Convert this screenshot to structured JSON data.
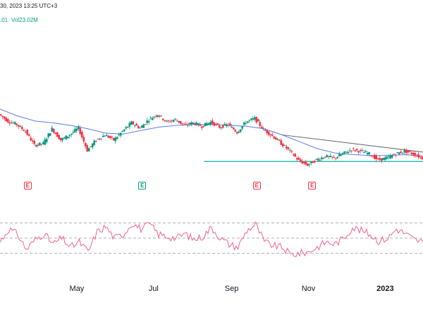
{
  "header": {
    "datetime_text": "30, 2023 13:25 UTC+3",
    "ohlc_fragment": ".01",
    "volume_text": "Vol23.02M"
  },
  "colors": {
    "up": "#089981",
    "down": "#f23645",
    "ma": "#5b7cf0",
    "trendline": "#5d606b",
    "support": "#2ebfb0",
    "rsi": "#f06292",
    "grid_dashed": "#9598a1",
    "axis_text": "#131722"
  },
  "earnings_badges": [
    {
      "label": "E",
      "color": "red",
      "x": "Mar 23"
    },
    {
      "label": "E",
      "color": "green",
      "x": "Jun 22"
    },
    {
      "label": "E",
      "color": "red",
      "x": "Sep 21"
    },
    {
      "label": "E",
      "color": "red",
      "x": "Nov 04"
    }
  ],
  "chart_data": [
    {
      "type": "candlestick",
      "series_name": "price",
      "overlays": [
        "moving average",
        "descending trendline",
        "horizontal support"
      ],
      "grid": false,
      "x_tick_labels": [
        "May",
        "Jul",
        "Sep",
        "Nov",
        "2023"
      ],
      "price_path": [
        [
          "Mar 01",
          72
        ],
        [
          "Mar 08",
          64
        ],
        [
          "Mar 15",
          60
        ],
        [
          "Mar 22",
          52
        ],
        [
          "Mar 29",
          36
        ],
        [
          "Apr 05",
          38
        ],
        [
          "Apr 12",
          55
        ],
        [
          "Apr 19",
          42
        ],
        [
          "Apr 26",
          48
        ],
        [
          "May 03",
          56
        ],
        [
          "May 10",
          30
        ],
        [
          "May 17",
          42
        ],
        [
          "May 24",
          48
        ],
        [
          "May 31",
          42
        ],
        [
          "Jun 07",
          52
        ],
        [
          "Jun 14",
          62
        ],
        [
          "Jun 21",
          56
        ],
        [
          "Jun 28",
          66
        ],
        [
          "Jul 05",
          72
        ],
        [
          "Jul 12",
          63
        ],
        [
          "Jul 19",
          66
        ],
        [
          "Jul 26",
          59
        ],
        [
          "Aug 02",
          62
        ],
        [
          "Aug 09",
          58
        ],
        [
          "Aug 16",
          63
        ],
        [
          "Aug 23",
          57
        ],
        [
          "Aug 30",
          60
        ],
        [
          "Sep 06",
          51
        ],
        [
          "Sep 13",
          63
        ],
        [
          "Sep 20",
          67
        ],
        [
          "Sep 27",
          54
        ],
        [
          "Oct 04",
          47
        ],
        [
          "Oct 11",
          38
        ],
        [
          "Oct 18",
          29
        ],
        [
          "Oct 25",
          18
        ],
        [
          "Nov 01",
          13
        ],
        [
          "Nov 08",
          19
        ],
        [
          "Nov 15",
          23
        ],
        [
          "Nov 22",
          21
        ],
        [
          "Nov 29",
          26
        ],
        [
          "Dec 06",
          31
        ],
        [
          "Dec 13",
          29
        ],
        [
          "Dec 20",
          26
        ],
        [
          "Dec 27",
          19
        ],
        [
          "Jan 03",
          21
        ],
        [
          "Jan 10",
          26
        ],
        [
          "Jan 17",
          29
        ],
        [
          "Jan 24",
          26
        ],
        [
          "Jan 31",
          21
        ]
      ],
      "ma_path": [
        [
          "Mar 01",
          78
        ],
        [
          "Mar 15",
          70
        ],
        [
          "Mar 29",
          64
        ],
        [
          "Apr 12",
          62
        ],
        [
          "Apr 26",
          59
        ],
        [
          "May 10",
          55
        ],
        [
          "May 24",
          50
        ],
        [
          "Jun 07",
          49
        ],
        [
          "Jun 21",
          53
        ],
        [
          "Jul 05",
          57
        ],
        [
          "Jul 19",
          59
        ],
        [
          "Aug 02",
          60
        ],
        [
          "Aug 16",
          60
        ],
        [
          "Aug 30",
          59
        ],
        [
          "Sep 13",
          58
        ],
        [
          "Sep 27",
          55
        ],
        [
          "Oct 11",
          48
        ],
        [
          "Oct 25",
          40
        ],
        [
          "Nov 08",
          32
        ],
        [
          "Nov 22",
          27
        ],
        [
          "Dec 06",
          25
        ],
        [
          "Dec 20",
          24
        ],
        [
          "Jan 03",
          24
        ],
        [
          "Jan 17",
          25
        ],
        [
          "Jan 31",
          23
        ]
      ],
      "trendline": [
        [
          "Oct 11",
          48
        ],
        [
          "Jan 31",
          28
        ]
      ],
      "support_line": [
        [
          "Aug 10",
          17
        ],
        [
          "Jan 31",
          17
        ]
      ]
    },
    {
      "type": "line",
      "series_name": "RSI",
      "guide_levels": [
        "upper",
        "middle",
        "lower"
      ],
      "values": [
        [
          "Mar 01",
          45
        ],
        [
          "Mar 08",
          62
        ],
        [
          "Mar 15",
          55
        ],
        [
          "Mar 22",
          35
        ],
        [
          "Mar 29",
          48
        ],
        [
          "Apr 05",
          56
        ],
        [
          "Apr 12",
          42
        ],
        [
          "Apr 19",
          50
        ],
        [
          "Apr 26",
          38
        ],
        [
          "May 03",
          45
        ],
        [
          "May 10",
          32
        ],
        [
          "May 17",
          58
        ],
        [
          "May 24",
          65
        ],
        [
          "May 31",
          50
        ],
        [
          "Jun 07",
          55
        ],
        [
          "Jun 14",
          70
        ],
        [
          "Jun 21",
          62
        ],
        [
          "Jun 28",
          68
        ],
        [
          "Jul 05",
          55
        ],
        [
          "Jul 12",
          52
        ],
        [
          "Jul 19",
          50
        ],
        [
          "Jul 26",
          56
        ],
        [
          "Aug 02",
          48
        ],
        [
          "Aug 09",
          52
        ],
        [
          "Aug 16",
          64
        ],
        [
          "Aug 23",
          50
        ],
        [
          "Aug 30",
          42
        ],
        [
          "Sep 06",
          38
        ],
        [
          "Sep 13",
          60
        ],
        [
          "Sep 20",
          68
        ],
        [
          "Sep 27",
          45
        ],
        [
          "Oct 04",
          40
        ],
        [
          "Oct 11",
          38
        ],
        [
          "Oct 18",
          28
        ],
        [
          "Oct 25",
          30
        ],
        [
          "Nov 01",
          32
        ],
        [
          "Nov 08",
          38
        ],
        [
          "Nov 15",
          45
        ],
        [
          "Nov 22",
          42
        ],
        [
          "Nov 29",
          50
        ],
        [
          "Dec 06",
          64
        ],
        [
          "Dec 13",
          60
        ],
        [
          "Dec 20",
          55
        ],
        [
          "Dec 27",
          46
        ],
        [
          "Jan 03",
          50
        ],
        [
          "Jan 10",
          62
        ],
        [
          "Jan 17",
          56
        ],
        [
          "Jan 24",
          48
        ],
        [
          "Jan 31",
          45
        ]
      ]
    }
  ]
}
